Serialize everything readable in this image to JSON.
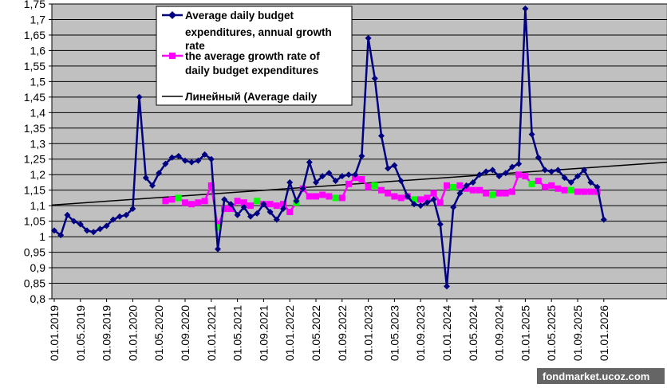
{
  "chart_data": {
    "type": "line",
    "title": "",
    "xlabel": "",
    "ylabel": "",
    "ylim": [
      0.8,
      1.75
    ],
    "y_ticks": [
      "1,75",
      "1,7",
      "1,65",
      "1,6",
      "1,55",
      "1,5",
      "1,45",
      "1,4",
      "1,35",
      "1,3",
      "1,25",
      "1,2",
      "1,15",
      "1,1",
      "1,05",
      "1",
      "0,95",
      "0,9",
      "0,85",
      "0,8"
    ],
    "x_tick_labels": [
      "01.01.2019",
      "01.05.2019",
      "01.09.2019",
      "01.01.2020",
      "01.05.2020",
      "01.09.2020",
      "01.01.2021",
      "01.05.2021",
      "01.09.2021",
      "01.01.2022",
      "01.05.2022",
      "01.09.2022",
      "01.01.2023",
      "01.05.2023",
      "01.09.2023",
      "01.01.2024",
      "01.05.2024",
      "01.09.2024",
      "01.01.2025",
      "01.05.2025",
      "01.09.2025",
      "01.01.2026"
    ],
    "grid": true,
    "legend_position": "top-center",
    "series": [
      {
        "name": "Average daily budget expenditures,  annual growth rate",
        "color": "#000080",
        "marker": "diamond",
        "start_month": "2019-01",
        "values": [
          1.02,
          1.005,
          1.07,
          1.05,
          1.04,
          1.02,
          1.015,
          1.025,
          1.035,
          1.055,
          1.065,
          1.07,
          1.09,
          1.45,
          1.19,
          1.165,
          1.205,
          1.235,
          1.255,
          1.26,
          1.245,
          1.24,
          1.245,
          1.265,
          1.25,
          0.96,
          1.12,
          1.105,
          1.07,
          1.095,
          1.065,
          1.075,
          1.105,
          1.08,
          1.055,
          1.09,
          1.175,
          1.115,
          1.155,
          1.24,
          1.175,
          1.195,
          1.205,
          1.18,
          1.195,
          1.2,
          1.2,
          1.26,
          1.64,
          1.51,
          1.325,
          1.22,
          1.23,
          1.18,
          1.13,
          1.105,
          1.1,
          1.11,
          1.12,
          1.04,
          0.84,
          1.095,
          1.14,
          1.165,
          1.175,
          1.2,
          1.21,
          1.215,
          1.195,
          1.205,
          1.225,
          1.235,
          1.735,
          1.33,
          1.255,
          1.215,
          1.21,
          1.215,
          1.19,
          1.175,
          1.195,
          1.215,
          1.175,
          1.16,
          1.055
        ]
      },
      {
        "name": "the average growth rate of daily budget expenditures",
        "color": "#ff00ff",
        "marker": "square",
        "start_month": "2020-06",
        "highlight_color": "#00ff00",
        "highlight_months": [
          "2020-08",
          "2021-02",
          "2021-08",
          "2022-02",
          "2022-08",
          "2023-02",
          "2023-08",
          "2024-02",
          "2024-08",
          "2025-02",
          "2025-08"
        ],
        "values": [
          1.115,
          1.12,
          1.125,
          1.11,
          1.105,
          1.11,
          1.115,
          1.165,
          1.03,
          1.09,
          1.09,
          1.115,
          1.11,
          1.1,
          1.115,
          1.105,
          1.105,
          1.1,
          1.105,
          1.08,
          1.11,
          1.155,
          1.13,
          1.13,
          1.135,
          1.13,
          1.125,
          1.125,
          1.17,
          1.19,
          1.185,
          1.16,
          1.165,
          1.15,
          1.14,
          1.13,
          1.125,
          1.13,
          1.12,
          1.12,
          1.125,
          1.14,
          1.11,
          1.165,
          1.16,
          1.165,
          1.155,
          1.15,
          1.15,
          1.14,
          1.135,
          1.14,
          1.14,
          1.145,
          1.2,
          1.195,
          1.17,
          1.18,
          1.16,
          1.165,
          1.155,
          1.15,
          1.15,
          1.145,
          1.145,
          1.145,
          1.145
        ]
      },
      {
        "name": "Линейный (Average daily",
        "color": "#000000",
        "type": "trendline",
        "start_value": 1.102,
        "end_value": 1.24
      }
    ]
  },
  "legend": {
    "items": [
      {
        "line1": "Average daily budget",
        "line2": "expenditures,  annual growth",
        "line3": "rate"
      },
      {
        "line1": "the average growth rate of",
        "line2": "daily budget expenditures"
      },
      {
        "line1": "Линейный (Average daily"
      }
    ]
  },
  "watermark": "fondmarket.ucoz.com",
  "colors": {
    "plot_bg": "#c0c0c0",
    "series1": "#000080",
    "series2": "#ff00ff",
    "highlight": "#00ff00"
  }
}
